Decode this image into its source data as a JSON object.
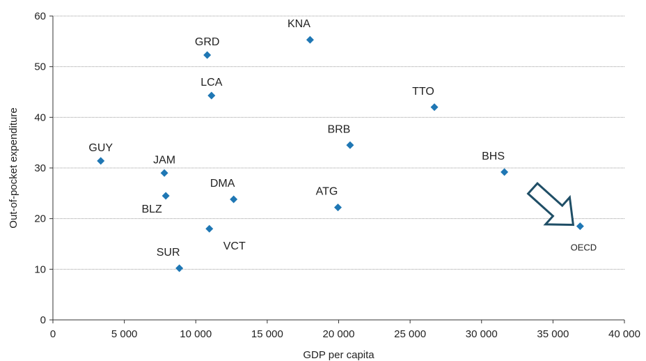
{
  "chart_data": {
    "type": "scatter",
    "title": "",
    "xlabel": "GDP per capita",
    "ylabel": "Out-of-pocket expenditure",
    "xlim": [
      0,
      40000
    ],
    "ylim": [
      0,
      60
    ],
    "x_ticks": [
      0,
      5000,
      10000,
      15000,
      20000,
      25000,
      30000,
      35000,
      40000
    ],
    "x_tick_labels": [
      "0",
      "5 000",
      "10 000",
      "15 000",
      "20 000",
      "25 000",
      "30 000",
      "35 000",
      "40 000"
    ],
    "y_ticks": [
      0,
      10,
      20,
      30,
      40,
      50,
      60
    ],
    "y_tick_labels": [
      "0",
      "10",
      "20",
      "30",
      "40",
      "50",
      "60"
    ],
    "grid": "horizontal",
    "marker_color": "#1f77b4",
    "gridline_color": "#9a9a9a",
    "arrow_color": "#1f4e66",
    "points": [
      {
        "label": "GUY",
        "x": 3350,
        "y": 31.4,
        "label_pos": "above"
      },
      {
        "label": "JAM",
        "x": 7800,
        "y": 29.0,
        "label_pos": "above"
      },
      {
        "label": "BLZ",
        "x": 7900,
        "y": 24.5,
        "label_pos": "below-left"
      },
      {
        "label": "SUR",
        "x": 8850,
        "y": 10.2,
        "label_pos": "above-left"
      },
      {
        "label": "GRD",
        "x": 10800,
        "y": 52.3,
        "label_pos": "above"
      },
      {
        "label": "LCA",
        "x": 11100,
        "y": 44.3,
        "label_pos": "above"
      },
      {
        "label": "VCT",
        "x": 10950,
        "y": 18.0,
        "label_pos": "below-right"
      },
      {
        "label": "DMA",
        "x": 12650,
        "y": 23.8,
        "label_pos": "above-left"
      },
      {
        "label": "KNA",
        "x": 18000,
        "y": 55.3,
        "label_pos": "above-left"
      },
      {
        "label": "ATG",
        "x": 19950,
        "y": 22.2,
        "label_pos": "above-left"
      },
      {
        "label": "BRB",
        "x": 20800,
        "y": 34.5,
        "label_pos": "above-left"
      },
      {
        "label": "TTO",
        "x": 26700,
        "y": 42.0,
        "label_pos": "above-left"
      },
      {
        "label": "BHS",
        "x": 31600,
        "y": 29.2,
        "label_pos": "above-left"
      },
      {
        "label": "OECD",
        "x": 36900,
        "y": 18.5,
        "label_pos": "below",
        "highlight": true
      }
    ]
  }
}
